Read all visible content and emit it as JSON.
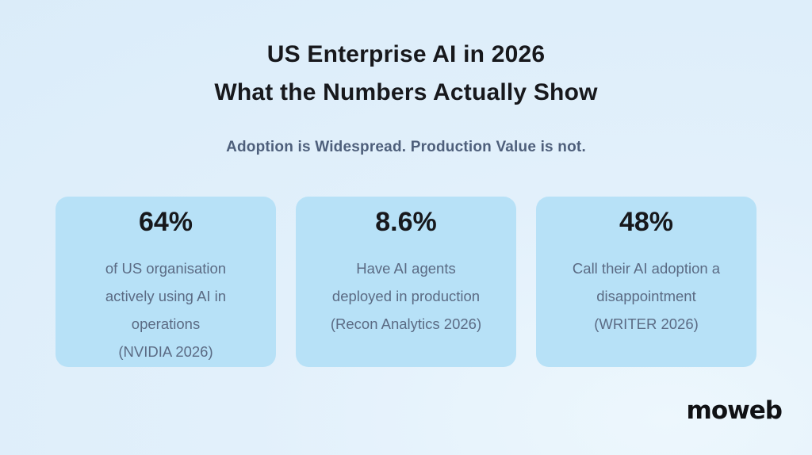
{
  "title": {
    "line1": "US Enterprise AI in 2026",
    "line2": "What the Numbers Actually Show"
  },
  "subtitle": "Adoption is Widespread. Production Value is not.",
  "cards": [
    {
      "value": "64%",
      "description": "of US organisation\nactively using AI in\noperations\n(NVIDIA 2026)"
    },
    {
      "value": "8.6%",
      "description": "Have AI agents\ndeployed in production\n(Recon Analytics 2026)"
    },
    {
      "value": "48%",
      "description": "Call their AI adoption a\ndisappointment\n(WRITER 2026)"
    }
  ],
  "logo": {
    "text": "moweb"
  },
  "colors": {
    "background_top": "#daecf9",
    "background_highlight": "#edf7fd",
    "card_background": "#b7e1f7",
    "title_text": "#17181c",
    "subtitle_text": "#4e5f7b",
    "body_text": "#5b6b84",
    "logo_text": "#101114"
  }
}
